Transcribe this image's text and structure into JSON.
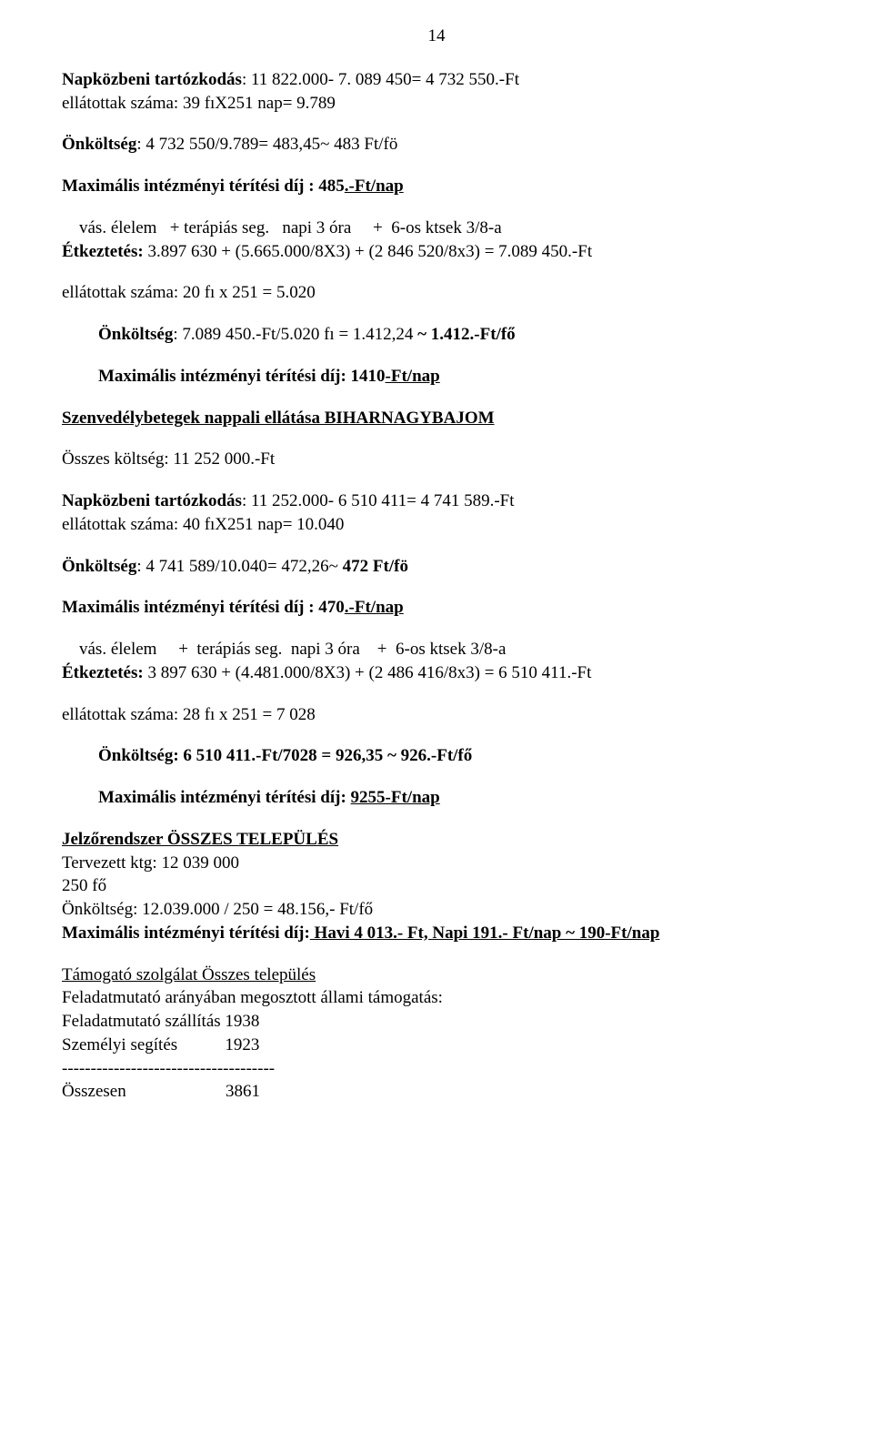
{
  "pageNumber": "14",
  "s1": {
    "l1a": "Napközbeni tartózkodás",
    "l1b": ": 11 822.000- 7. 089 450= 4 732 550.-Ft",
    "l2": "ellátottak száma: 39 fıX251 nap= 9.789",
    "l3a": "Önköltség",
    "l3b": ": 4 732 550/9.789= 483,45~ 483 Ft/fö",
    "l4a": "Maximális intézményi  térítési díj ",
    "l4b": ": 485",
    "l4c": ".-Ft/nap"
  },
  "s2": {
    "l1": "    vás. élelem   + terápiás seg.   napi 3 óra     +  6-os ktsek 3/8-a",
    "l2a": "Étkeztetés: ",
    "l2b": "3.897 630 +   (5.665.000/8X3)   +   (2 846 520/8x3)      =        7.089 450.-Ft",
    "l3": "ellátottak száma:",
    "l3b": " 20 fı x 251 = 5.020",
    "l4a": "Önköltség",
    "l4b": ": 7.089 450.-Ft/5.020 fı = 1.412,24",
    "l4c": " ~ 1.412.-Ft/fő",
    "l5a": "Maximális intézményi térítési díj",
    "l5b": ": 1410",
    "l5c": "-Ft/nap"
  },
  "s3": {
    "h": "Szenvedélybetegek nappali  ellátása  BIHARNAGYBAJOM",
    "l1": "Összes költség: 11 252 000.-Ft",
    "l2a": "Napközbeni tartózkodás",
    "l2b": ": 11 252.000- 6 510 411= 4 741 589.-Ft",
    "l3": "ellátottak száma: 40 fıX251 nap= 10.040",
    "l4a": "Önköltség",
    "l4b": ": 4 741 589/10.040= 472,26~",
    "l4c": " 472 Ft/fö",
    "l5a": "Maximális intézményi  térítési díj ",
    "l5b": ": 470",
    "l5c": ".-Ft/nap"
  },
  "s4": {
    "l1": "    vás. élelem     +  terápiás seg.  napi 3 óra    +  6-os ktsek 3/8-a",
    "l2a": "Étkeztetés: ",
    "l2b": "3 897 630 +   (4.481.000/8X3)    +           (2 486 416/8x3)      =  6 510 411.-Ft",
    "l3": "ellátottak száma:",
    "l3b": " 28 fı x 251 =  7 028",
    "l4a": "Önköltség",
    "l4b": ": 6 510 411.-Ft/7028 = 926,35 ~ 926.-Ft/fő",
    "l5a": "Maximális intézményi térítési díj",
    "l5b": ":  ",
    "l5c": "9255-Ft/nap"
  },
  "s5": {
    "h": "Jelzőrendszer  ÖSSZES TELEPÜLÉS",
    "l1": " Tervezett ktg: 12 039 000",
    "l2": " 250 fő",
    "l3": "Önköltség: 12.039.000 / 250 = 48.156,- Ft/fő",
    "l4a": "Maximális intézményi  térítési díj:",
    "l4b": " Havi 4 013.- Ft,   Napi 191.- Ft/nap  ~ 190-Ft/nap"
  },
  "s6": {
    "h": "Támogató szolgálat Összes település",
    "l1": "Feladatmutató arányában megosztott állami támogatás:",
    "l2": "Feladatmutató szállítás 1938",
    "l3": "Személyi segítés           1923",
    "dash": "-------------------------------------",
    "l4": "Összesen                       3861"
  }
}
